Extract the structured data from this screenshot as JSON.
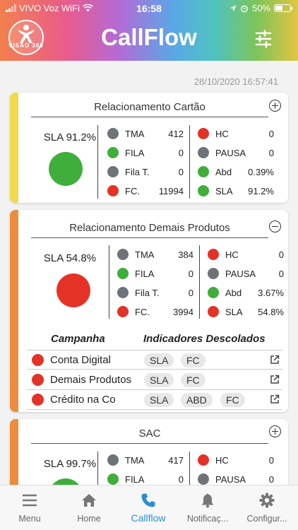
{
  "status_bar": {
    "carrier": "VIVO Voz WiFi",
    "time": "16:58",
    "battery": "50%",
    "battery_level": 0.5
  },
  "header": {
    "logo_text": "VISÃO 360",
    "title": "CallFlow",
    "filter_icon": "sliders-icon"
  },
  "timestamp": "28/10/2020 16:57:41",
  "colors": {
    "green": "#3fae3a",
    "red": "#e53227",
    "gray": "#6e737a",
    "yellow": "#f3d94e",
    "orange": "#ec8c3c",
    "accent": "#2b8fd4"
  },
  "cards": [
    {
      "title": "Relacionamento Cartão",
      "sla_label": "SLA 91.2%",
      "left_metrics": [
        {
          "label": "TMA",
          "value": "412"
        },
        {
          "label": "FILA",
          "value": "0"
        },
        {
          "label": "Fila T.",
          "value": "0"
        },
        {
          "label": "FC.",
          "value": "11994"
        }
      ],
      "right_metrics": [
        {
          "label": "HC",
          "value": "0"
        },
        {
          "label": "PAUSA",
          "value": "0"
        },
        {
          "label": "Abd",
          "value": "0.39%"
        },
        {
          "label": "SLA",
          "value": "91.2%"
        }
      ]
    },
    {
      "title": "Relacionamento Demais Produtos",
      "sla_label": "SLA 54.8%",
      "left_metrics": [
        {
          "label": "TMA",
          "value": "384"
        },
        {
          "label": "FILA",
          "value": "0"
        },
        {
          "label": "Fila T.",
          "value": "0"
        },
        {
          "label": "FC.",
          "value": "3994"
        }
      ],
      "right_metrics": [
        {
          "label": "HC",
          "value": "0"
        },
        {
          "label": "PAUSA",
          "value": "0"
        },
        {
          "label": "Abd",
          "value": "3.67%"
        },
        {
          "label": "SLA",
          "value": "54.8%"
        }
      ],
      "campaign_header": "Campanha",
      "indicators_header": "Indicadores Descolados",
      "campaigns": [
        {
          "name": "Conta Digital",
          "chips": [
            "SLA",
            "FC"
          ]
        },
        {
          "name": "Demais Produtos",
          "chips": [
            "SLA",
            "FC"
          ]
        },
        {
          "name": "Crédito na Co",
          "chips": [
            "SLA",
            "ABD",
            "FC"
          ]
        }
      ]
    },
    {
      "title": "SAC",
      "sla_label": "SLA 99.7%",
      "left_metrics": [
        {
          "label": "TMA",
          "value": "417"
        },
        {
          "label": "FILA",
          "value": "0"
        }
      ],
      "right_metrics": [
        {
          "label": "HC",
          "value": "0"
        },
        {
          "label": "PAUSA",
          "value": "0"
        }
      ]
    }
  ],
  "tabs": [
    {
      "label": "Menu",
      "icon": "menu-icon"
    },
    {
      "label": "Home",
      "icon": "home-icon"
    },
    {
      "label": "Callflow",
      "icon": "phone-icon"
    },
    {
      "label": "Notificaç...",
      "icon": "bell-icon"
    },
    {
      "label": "Configur...",
      "icon": "gear-icon"
    }
  ]
}
